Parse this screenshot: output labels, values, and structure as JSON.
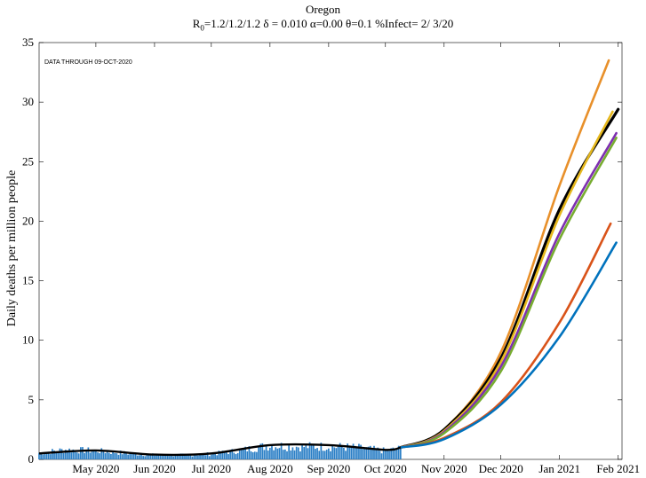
{
  "title": "Oregon",
  "subtitle": {
    "r_prefix": "R",
    "r_sub": "0",
    "r_rest": "=1.2/1.2/1.2  δ = 0.010  α=0.00  θ=0.1  %Infect= 2/ 3/20"
  },
  "annotation": "DATA THROUGH 09-OCT-2020",
  "chart_data": {
    "type": "line",
    "title": "Oregon",
    "ylabel": "Daily deaths per million people",
    "xlabel": "",
    "x_axis": {
      "start": "2020-04-01",
      "end": "2021-02-03",
      "ticks": [
        {
          "date": "2020-05-01",
          "label": "May 2020"
        },
        {
          "date": "2020-06-01",
          "label": "Jun 2020"
        },
        {
          "date": "2020-07-01",
          "label": "Jul 2020"
        },
        {
          "date": "2020-08-01",
          "label": "Aug 2020"
        },
        {
          "date": "2020-09-01",
          "label": "Sep 2020"
        },
        {
          "date": "2020-10-01",
          "label": "Oct 2020"
        },
        {
          "date": "2020-11-01",
          "label": "Nov 2020"
        },
        {
          "date": "2020-12-01",
          "label": "Dec 2020"
        },
        {
          "date": "2021-01-01",
          "label": "Jan 2021"
        },
        {
          "date": "2021-02-01",
          "label": "Feb 2021"
        }
      ]
    },
    "ylim": [
      0,
      35
    ],
    "yticks": [
      0,
      5,
      10,
      15,
      20,
      25,
      30,
      35
    ],
    "grid": false,
    "daily_bars": {
      "color": "#2b7fc6",
      "x": [
        "2020-04-01",
        "2020-04-15",
        "2020-05-01",
        "2020-05-15",
        "2020-06-01",
        "2020-06-15",
        "2020-07-01",
        "2020-07-15",
        "2020-08-01",
        "2020-08-15",
        "2020-09-01",
        "2020-09-15",
        "2020-10-01",
        "2020-10-09"
      ],
      "y": [
        0.6,
        0.9,
        0.8,
        0.6,
        0.4,
        0.4,
        0.5,
        0.8,
        1.3,
        1.2,
        1.2,
        1.1,
        0.8,
        1.0
      ]
    },
    "series": [
      {
        "color": "#e8902a",
        "x": [
          "2020-10-09",
          "2020-11-01",
          "2020-12-01",
          "2021-01-01",
          "2021-01-27"
        ],
        "y": [
          1.0,
          2.5,
          9.0,
          23.0,
          33.5
        ]
      },
      {
        "color": "#000000",
        "x": [
          "2020-10-09",
          "2020-11-01",
          "2020-12-01",
          "2021-01-01",
          "2021-02-01"
        ],
        "y": [
          1.0,
          2.5,
          8.5,
          21.0,
          29.4
        ]
      },
      {
        "color": "#e6b81e",
        "x": [
          "2020-10-09",
          "2020-11-01",
          "2020-12-01",
          "2021-01-01",
          "2021-01-29"
        ],
        "y": [
          1.0,
          2.4,
          8.2,
          20.5,
          29.2
        ]
      },
      {
        "color": "#7e2fb0",
        "x": [
          "2020-10-09",
          "2020-11-01",
          "2020-12-01",
          "2021-01-01",
          "2021-01-31"
        ],
        "y": [
          1.0,
          2.3,
          7.8,
          19.0,
          27.4
        ]
      },
      {
        "color": "#77ac30",
        "x": [
          "2020-10-09",
          "2020-11-01",
          "2020-12-01",
          "2021-01-01",
          "2021-01-31"
        ],
        "y": [
          1.0,
          2.2,
          7.4,
          18.5,
          27.0
        ]
      },
      {
        "color": "#d95319",
        "x": [
          "2020-10-09",
          "2020-11-01",
          "2020-12-01",
          "2021-01-01",
          "2021-01-28"
        ],
        "y": [
          1.0,
          1.8,
          4.8,
          11.5,
          19.8
        ]
      },
      {
        "color": "#0072bd",
        "x": [
          "2020-10-09",
          "2020-11-01",
          "2020-12-01",
          "2021-01-01",
          "2021-01-31"
        ],
        "y": [
          1.0,
          1.7,
          4.6,
          10.3,
          18.2
        ]
      }
    ],
    "fit_line": {
      "color": "#000000",
      "x": [
        "2020-04-01",
        "2020-05-01",
        "2020-06-01",
        "2020-07-01",
        "2020-08-01",
        "2020-09-01",
        "2020-10-01",
        "2020-10-09"
      ],
      "y": [
        0.5,
        0.75,
        0.4,
        0.5,
        1.2,
        1.2,
        0.8,
        1.0
      ]
    }
  }
}
